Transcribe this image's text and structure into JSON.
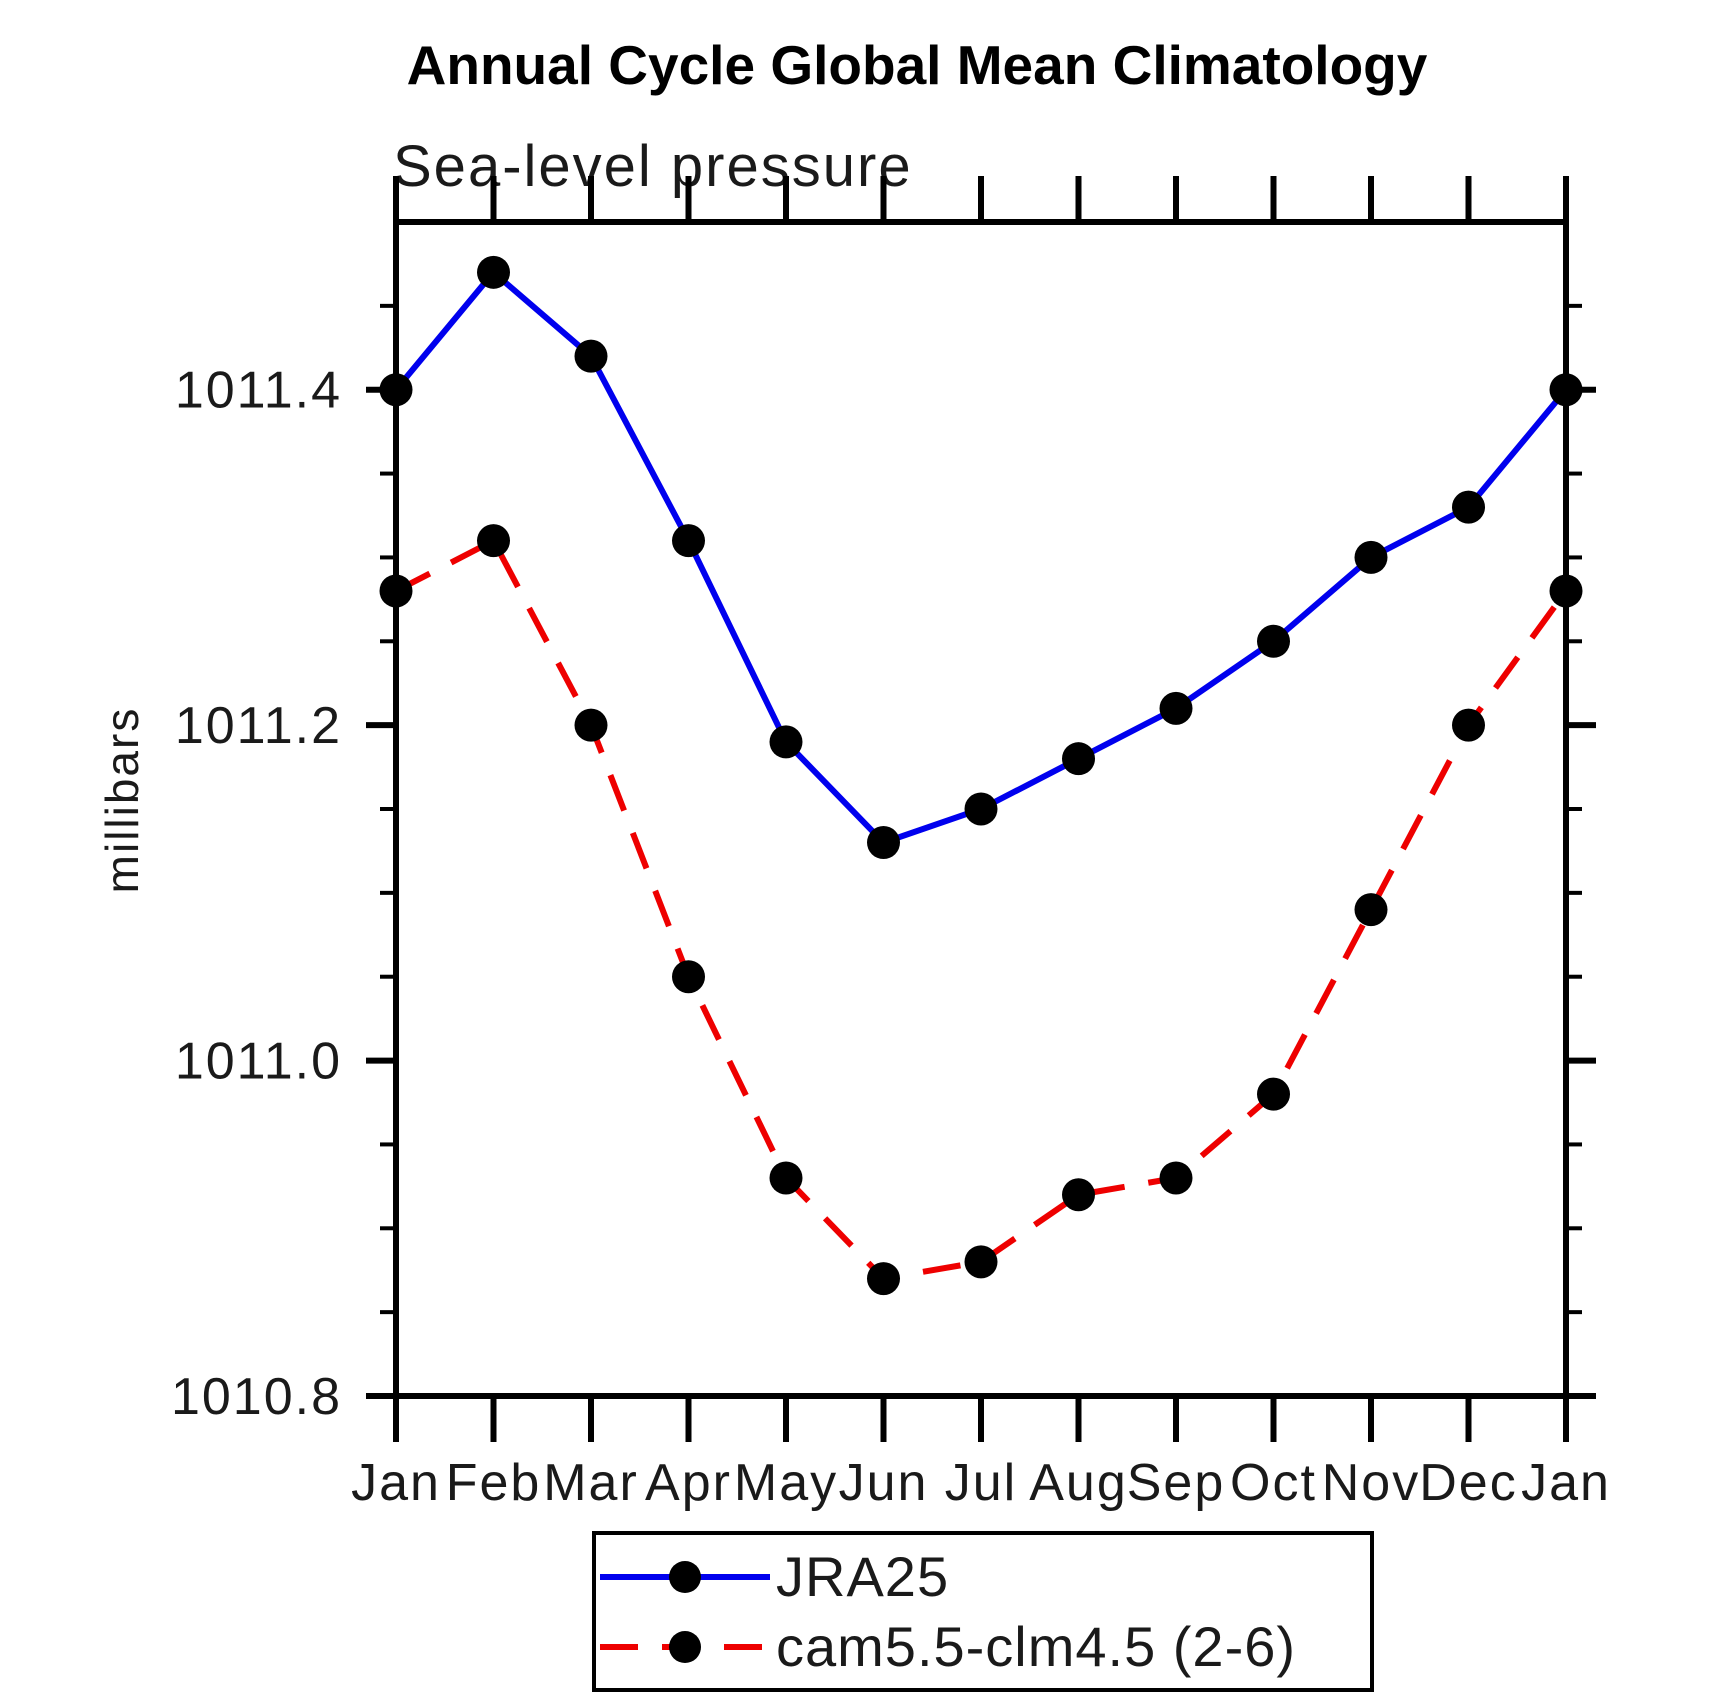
{
  "page": {
    "background": "#ffffff"
  },
  "chart_data": {
    "type": "line",
    "title": "Annual Cycle Global Mean Climatology",
    "subtitle": "Sea-level pressure",
    "ylabel": "millibars",
    "categories": [
      "Jan",
      "Feb",
      "Mar",
      "Apr",
      "May",
      "Jun",
      "Jul",
      "Aug",
      "Sep",
      "Oct",
      "Nov",
      "Dec",
      "Jan"
    ],
    "series": [
      {
        "name": "JRA25",
        "color": "#0000ee",
        "line_style": "solid",
        "marker": "filled-circle",
        "marker_color": "#000000",
        "values": [
          1011.4,
          1011.47,
          1011.42,
          1011.31,
          1011.19,
          1011.13,
          1011.15,
          1011.18,
          1011.21,
          1011.25,
          1011.3,
          1011.33,
          1011.4
        ]
      },
      {
        "name": "cam5.5-clm4.5 (2-6)",
        "color": "#ee0000",
        "line_style": "dashed",
        "marker": "filled-circle",
        "marker_color": "#000000",
        "values": [
          1011.28,
          1011.31,
          1011.2,
          1011.05,
          1010.93,
          1010.87,
          1010.88,
          1010.92,
          1010.93,
          1010.98,
          1011.09,
          1011.2,
          1011.28
        ]
      }
    ],
    "ylim": [
      1010.8,
      1011.5
    ],
    "yticks_major": [
      1010.8,
      1011.0,
      1011.2,
      1011.4
    ],
    "ytick_labels": [
      "1010.8",
      "1011.0",
      "1011.2",
      "1011.4"
    ],
    "ytick_minor_step": 0.05,
    "grid": false,
    "legend_position": "bottom",
    "axis_color": "#000000"
  }
}
